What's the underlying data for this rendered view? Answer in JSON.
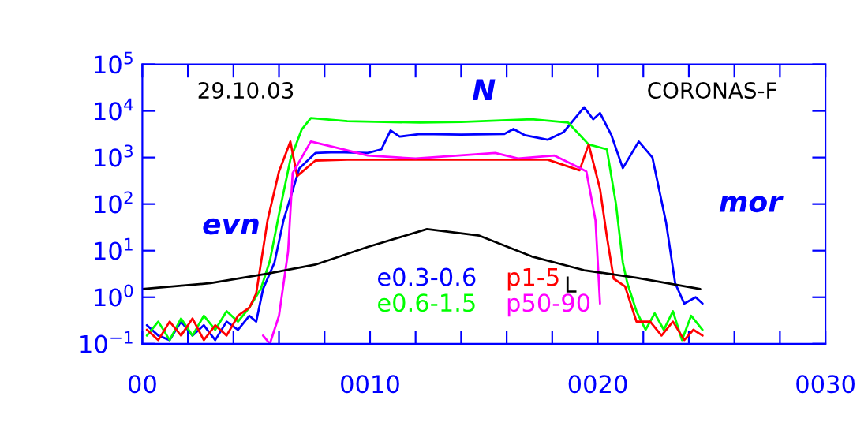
{
  "chart_data": {
    "type": "line",
    "log": "y",
    "annotations": [
      "29.10.03",
      "N",
      "CORONAS-F",
      "evn",
      "mor"
    ],
    "xlim": [
      0,
      30
    ],
    "ylim": [
      0.1,
      100000
    ],
    "xticks": [
      {
        "value": 0,
        "label": "00"
      },
      {
        "value": 2,
        "label": null
      },
      {
        "value": 4,
        "label": null
      },
      {
        "value": 6,
        "label": null
      },
      {
        "value": 8,
        "label": null
      },
      {
        "value": 10,
        "label": "0010"
      },
      {
        "value": 12,
        "label": null
      },
      {
        "value": 14,
        "label": null
      },
      {
        "value": 16,
        "label": null
      },
      {
        "value": 18,
        "label": null
      },
      {
        "value": 20,
        "label": "0020"
      },
      {
        "value": 22,
        "label": null
      },
      {
        "value": 24,
        "label": null
      },
      {
        "value": 26,
        "label": null
      },
      {
        "value": 28,
        "label": null
      },
      {
        "value": 30,
        "label": "0030"
      }
    ],
    "yticks": [
      {
        "value": 0.1,
        "label": "10$^{−1}$"
      },
      {
        "value": 1,
        "label": "10$^{0}$"
      },
      {
        "value": 10,
        "label": "10$^{1}$"
      },
      {
        "value": 100,
        "label": "10$^{2}$"
      },
      {
        "value": 1000,
        "label": "10$^{3}$"
      },
      {
        "value": 10000,
        "label": "10$^{4}$"
      },
      {
        "value": 100000,
        "label": "10$^{5}$"
      }
    ],
    "legend": "bottom",
    "grid": false,
    "series": [
      {
        "name": "e0.3-0.6",
        "color": "#0000ff",
        "x": [
          0.2,
          0.7,
          1.2,
          1.7,
          2.2,
          2.7,
          3.2,
          3.7,
          4.2,
          4.7,
          5.0,
          5.3,
          5.8,
          6.2,
          6.9,
          7.6,
          8.5,
          9.9,
          10.5,
          10.9,
          11.3,
          12.2,
          14,
          15.9,
          16.3,
          16.8,
          17.8,
          18.5,
          19.4,
          19.8,
          20.1,
          20.6,
          21.1,
          21.8,
          22.4,
          23.0,
          23.4,
          23.8,
          24.3,
          24.6
        ],
        "values": [
          0.25,
          0.15,
          0.12,
          0.3,
          0.15,
          0.25,
          0.12,
          0.3,
          0.2,
          0.4,
          0.3,
          1.5,
          5.5,
          45,
          590,
          1250,
          1300,
          1250,
          1500,
          3800,
          2800,
          3200,
          3100,
          3200,
          4100,
          3000,
          2400,
          3500,
          12000,
          6600,
          9000,
          3000,
          590,
          2200,
          1000,
          40,
          2.0,
          0.73,
          1.0,
          0.73
        ]
      },
      {
        "name": "e0.6-1.5",
        "color": "#00ff00",
        "x": [
          0.2,
          0.7,
          1.2,
          1.7,
          2.2,
          2.7,
          3.2,
          3.7,
          4.2,
          4.7,
          5.2,
          5.6,
          6.0,
          6.5,
          7.0,
          7.4,
          9,
          12.2,
          14,
          17.1,
          18.7,
          19.6,
          20.4,
          20.8,
          21.1,
          21.3,
          21.7,
          22.1,
          22.5,
          22.9,
          23.3,
          23.7,
          24.1,
          24.6
        ],
        "values": [
          0.15,
          0.3,
          0.12,
          0.35,
          0.15,
          0.4,
          0.2,
          0.5,
          0.3,
          0.6,
          1.5,
          6,
          60,
          900,
          4000,
          7000,
          6000,
          5600,
          5800,
          6600,
          5600,
          1900,
          1500,
          100,
          5.5,
          2.0,
          0.5,
          0.2,
          0.45,
          0.2,
          0.5,
          0.12,
          0.4,
          0.2
        ]
      },
      {
        "name": "p1-5",
        "color": "#ff0000",
        "x": [
          0.2,
          0.7,
          1.2,
          1.7,
          2.2,
          2.7,
          3.2,
          3.7,
          4.2,
          4.7,
          5.0,
          5.5,
          6.0,
          6.5,
          6.8,
          7.6,
          9,
          12,
          15,
          17.8,
          19.2,
          19.6,
          20.1,
          20.4,
          20.7,
          21.2,
          21.7,
          22.3,
          22.8,
          23.3,
          23.8,
          24.2,
          24.6
        ],
        "values": [
          0.2,
          0.12,
          0.3,
          0.15,
          0.35,
          0.12,
          0.25,
          0.15,
          0.4,
          0.6,
          1.2,
          45,
          500,
          2200,
          400,
          860,
          900,
          900,
          900,
          900,
          530,
          1900,
          210,
          20,
          2.5,
          1.7,
          0.3,
          0.3,
          0.15,
          0.3,
          0.12,
          0.2,
          0.15
        ]
      },
      {
        "name": "p50-90",
        "color": "#ff00ff",
        "x": [
          5.3,
          5.6,
          6.0,
          6.4,
          6.6,
          7.4,
          8.8,
          9.9,
          12,
          15.5,
          16.5,
          18.1,
          19.2,
          19.5,
          19.9,
          20.1
        ],
        "values": [
          0.15,
          0.1,
          0.4,
          9.5,
          460,
          2200,
          1500,
          1100,
          950,
          1250,
          950,
          1100,
          600,
          500,
          45,
          0.73
        ]
      },
      {
        "name": "L",
        "color": "#000000",
        "x": [
          0,
          3,
          5.5,
          7.6,
          9.9,
          12.5,
          14.8,
          17.1,
          19.4,
          21.7,
          24.5
        ],
        "values": [
          1.5,
          2,
          3.2,
          5,
          12,
          29,
          21,
          7.5,
          3.8,
          2.6,
          1.5
        ]
      }
    ]
  }
}
